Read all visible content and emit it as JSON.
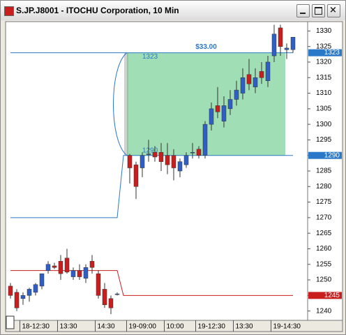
{
  "chart_data": {
    "type": "candlestick",
    "title": "S.JP.J8001 - ITOCHU Corporation, 10 Min",
    "open": [
      1248,
      1246,
      1244,
      1245,
      1246,
      1248,
      1253,
      1254.5,
      1256,
      1257,
      1251,
      1253,
      1250.5,
      1256,
      1252,
      1247,
      1244,
      1245.5,
      null,
      1290,
      1287,
      1286,
      1290.5,
      1291,
      1291,
      1290,
      1290,
      1285,
      1287,
      1291,
      1292,
      1290,
      1300,
      1306,
      1301,
      1305,
      1308,
      1310,
      1316,
      1312,
      1317,
      1314,
      1322,
      1331,
      1324,
      1324
    ],
    "high": [
      1249,
      1247,
      1246,
      1247.5,
      1249,
      1252,
      1256,
      1255.5,
      1258,
      1260,
      1254,
      1255,
      1255,
      1258,
      1253,
      1249,
      1245,
      1246,
      null,
      1290.5,
      1288,
      1291,
      1295,
      1293,
      1294,
      1294,
      1292,
      1289,
      1291,
      1294,
      1293,
      1301,
      1307,
      1312,
      1309,
      1311,
      1314,
      1318,
      1321,
      1318,
      1320,
      1322,
      1332,
      1332,
      1326,
      1328
    ],
    "low": [
      1244,
      1240,
      1242,
      1243,
      1245,
      1247,
      1252,
      1253.5,
      1250,
      1252,
      1250,
      1250,
      1249,
      1252,
      1244,
      1241,
      1239,
      1245,
      null,
      1281,
      1276,
      1283,
      1288,
      1288,
      1285,
      1284,
      1282,
      1283,
      1286,
      1289,
      1289,
      1289,
      1298,
      1302,
      1299,
      1303,
      1306,
      1308,
      1311,
      1310,
      1313,
      1312,
      1320,
      1322,
      1321,
      1323
    ],
    "close": [
      1245,
      1241,
      1245,
      1247,
      1248.5,
      1252,
      1255,
      1254,
      1252,
      1252.5,
      1253,
      1251,
      1254,
      1254,
      1245,
      1242,
      1241,
      1245.5,
      null,
      1286,
      1280,
      1290,
      1290.5,
      1289.5,
      1288,
      1287,
      1286,
      1288,
      1290,
      1291,
      1290,
      1300,
      1305,
      1304,
      1306,
      1308,
      1311,
      1315,
      1313,
      1315,
      1315,
      1320,
      1329,
      1325,
      1324.5,
      1328
    ],
    "up_color": "#2f5fc4",
    "down_color": "#c81e1e",
    "ylim": [
      1237,
      1333
    ],
    "yticks": [
      1240,
      1245,
      1250,
      1255,
      1260,
      1265,
      1270,
      1275,
      1280,
      1285,
      1290,
      1295,
      1300,
      1305,
      1310,
      1315,
      1320,
      1325,
      1330
    ],
    "xticks": [
      {
        "value": 2,
        "label": "18-12:30"
      },
      {
        "value": 8,
        "label": "13:30"
      },
      {
        "value": 14,
        "label": "14:30"
      },
      {
        "value": 19,
        "label": "19-09:00"
      },
      {
        "value": 25,
        "label": "10:00"
      },
      {
        "value": 30,
        "label": "19-12:30"
      },
      {
        "value": 36,
        "label": "13:30"
      },
      {
        "value": 42,
        "label": "19-14:30"
      }
    ],
    "lines": [
      {
        "color": "#2a78c8",
        "x": [
          0,
          45
        ],
        "y": [
          1323,
          1323
        ]
      },
      {
        "color": "#2a78c8",
        "x": [
          0,
          17,
          18,
          45
        ],
        "y": [
          1270,
          1270,
          1290,
          1290
        ]
      },
      {
        "color": "#c81e1e",
        "x": [
          0,
          17,
          18,
          45
        ],
        "y": [
          1253,
          1253,
          1245,
          1245
        ]
      }
    ],
    "measure": {
      "x": [
        19,
        44
      ],
      "from": 1290,
      "to": 1323,
      "color": "#8fd8a8",
      "change": {
        "value": 33,
        "label": "$33.00"
      }
    }
  }
}
